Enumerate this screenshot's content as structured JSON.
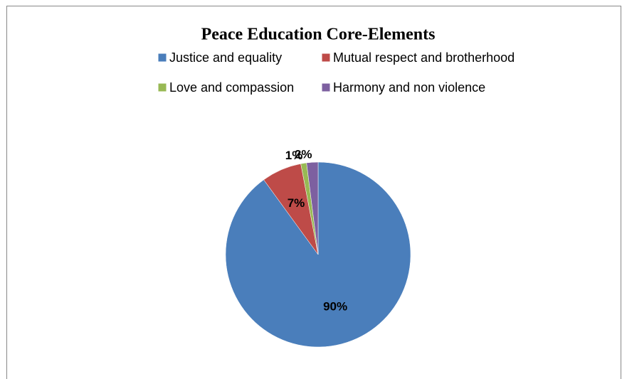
{
  "chart_data": {
    "type": "pie",
    "title": "Peace Education Core-Elements",
    "categories": [
      "Justice and equality",
      "Mutual respect and brotherhood",
      "Love and compassion",
      "Harmony and non violence"
    ],
    "values": [
      90,
      7,
      1,
      2
    ],
    "value_labels": [
      "90%",
      "7%",
      "1%",
      "2%"
    ],
    "colors": [
      "#4a7ebb",
      "#be4b48",
      "#98b954",
      "#7d60a0"
    ],
    "legend": "top"
  }
}
